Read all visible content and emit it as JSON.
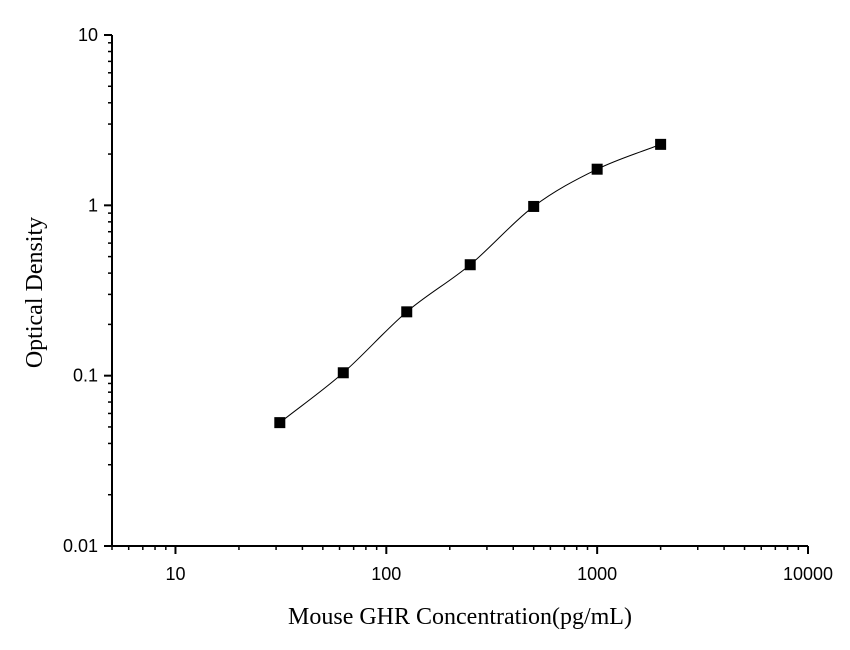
{
  "chart_data": {
    "type": "scatter",
    "xlabel": "Mouse GHR Concentration(pg/mL)",
    "ylabel": "Optical Density",
    "xscale": "log",
    "yscale": "log",
    "xlim": [
      5,
      10000
    ],
    "ylim": [
      0.01,
      10
    ],
    "x_ticks": [
      10,
      100,
      1000,
      10000
    ],
    "x_tick_labels": [
      "10",
      "100",
      "1000",
      "10000"
    ],
    "y_ticks": [
      0.01,
      0.1,
      1,
      10
    ],
    "y_tick_labels": [
      "0.01",
      "0.1",
      "1",
      "10"
    ],
    "grid": false,
    "marker": "square",
    "marker_color": "#000000",
    "line_color": "#000000",
    "fit_curve": "four-parameter logistic",
    "series": [
      {
        "x": [
          31.25,
          62.5,
          125,
          250,
          500,
          1000,
          2000
        ],
        "y": [
          0.053,
          0.104,
          0.237,
          0.448,
          0.985,
          1.63,
          2.28
        ]
      }
    ]
  }
}
